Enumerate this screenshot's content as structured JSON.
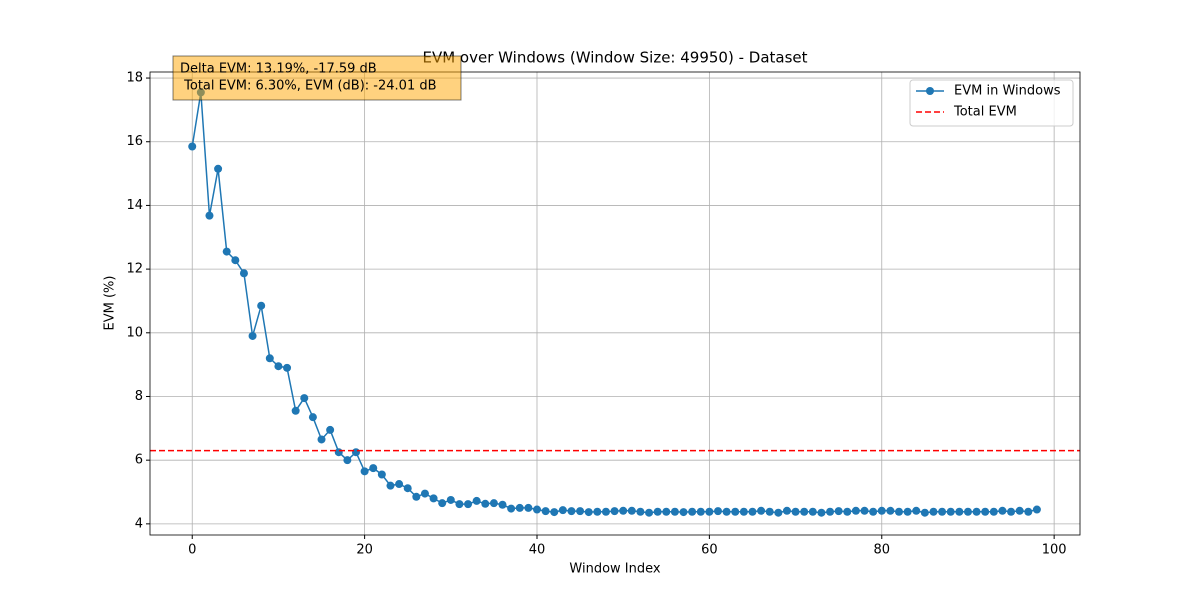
{
  "chart_data": {
    "type": "line",
    "title": "EVM over Windows (Window Size: 49950) - Dataset",
    "x_label": "Window Index",
    "y_label": "EVM (%)",
    "xlim": [
      -4.9,
      103.0
    ],
    "ylim": [
      3.65,
      18.19
    ],
    "xticks": [
      0,
      20,
      40,
      60,
      80,
      100
    ],
    "yticks": [
      4,
      6,
      8,
      10,
      12,
      14,
      16,
      18
    ],
    "grid": true,
    "legend": "upper right",
    "series": [
      {
        "name": "EVM in Windows",
        "color": "#1f77b4",
        "x": [
          0,
          1,
          2,
          3,
          4,
          5,
          6,
          7,
          8,
          9,
          10,
          11,
          12,
          13,
          14,
          15,
          16,
          17,
          18,
          19,
          20,
          21,
          22,
          23,
          24,
          25,
          26,
          27,
          28,
          29,
          30,
          31,
          32,
          33,
          34,
          35,
          36,
          37,
          38,
          39,
          40,
          41,
          42,
          43,
          44,
          45,
          46,
          47,
          48,
          49,
          50,
          51,
          52,
          53,
          54,
          55,
          56,
          57,
          58,
          59,
          60,
          61,
          62,
          63,
          64,
          65,
          66,
          67,
          68,
          69,
          70,
          71,
          72,
          73,
          74,
          75,
          76,
          77,
          78,
          79,
          80,
          81,
          82,
          83,
          84,
          85,
          86,
          87,
          88,
          89,
          90,
          91,
          92,
          93,
          94,
          95,
          96,
          97,
          98
        ],
        "values": [
          15.85,
          17.55,
          13.68,
          15.15,
          12.55,
          12.28,
          11.87,
          9.9,
          10.85,
          9.2,
          8.95,
          8.9,
          7.55,
          7.95,
          7.35,
          6.65,
          6.95,
          6.25,
          6.0,
          6.25,
          5.65,
          5.75,
          5.55,
          5.2,
          5.25,
          5.12,
          4.85,
          4.95,
          4.8,
          4.65,
          4.75,
          4.62,
          4.62,
          4.72,
          4.63,
          4.65,
          4.6,
          4.48,
          4.5,
          4.5,
          4.45,
          4.4,
          4.37,
          4.43,
          4.4,
          4.4,
          4.37,
          4.38,
          4.38,
          4.4,
          4.41,
          4.41,
          4.38,
          4.35,
          4.38,
          4.38,
          4.38,
          4.37,
          4.38,
          4.38,
          4.38,
          4.4,
          4.38,
          4.38,
          4.38,
          4.38,
          4.41,
          4.38,
          4.35,
          4.41,
          4.38,
          4.38,
          4.38,
          4.35,
          4.38,
          4.4,
          4.38,
          4.41,
          4.41,
          4.38,
          4.41,
          4.41,
          4.38,
          4.38,
          4.41,
          4.35,
          4.38,
          4.38,
          4.38,
          4.38,
          4.38,
          4.38,
          4.38,
          4.38,
          4.41,
          4.38,
          4.41,
          4.38,
          4.45
        ]
      }
    ],
    "reference_lines": [
      {
        "name": "Total EVM",
        "color": "#ff0000",
        "value": 6.3
      }
    ],
    "annotations": [
      "Delta EVM: 13.19%, -17.59 dB",
      " Total EVM: 6.30%, EVM (dB): -24.01 dB"
    ]
  }
}
